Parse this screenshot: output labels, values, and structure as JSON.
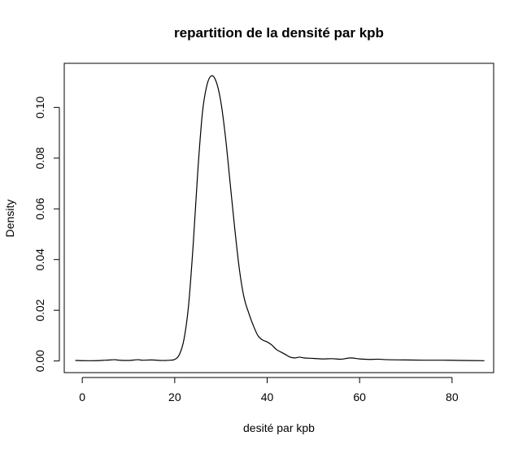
{
  "chart_data": {
    "type": "line",
    "title": "repartition de la densité par kpb",
    "xlabel": "desité par kpb",
    "ylabel": "Density",
    "xlim": [
      -3.9,
      89.0
    ],
    "ylim": [
      -0.0046,
      0.1174
    ],
    "x_ticks": [
      0,
      20,
      40,
      60,
      80
    ],
    "x_tick_labels": [
      "0",
      "20",
      "40",
      "60",
      "80"
    ],
    "y_ticks": [
      0.0,
      0.02,
      0.04,
      0.06,
      0.08,
      0.1
    ],
    "y_tick_labels": [
      "0.00",
      "0.02",
      "0.04",
      "0.06",
      "0.08",
      "0.10"
    ],
    "grid": false,
    "legend": "none",
    "line_color": "#000000",
    "series": [
      {
        "x": [
          -1.5,
          2,
          5,
          7,
          8,
          10,
          12,
          13,
          15,
          17,
          18,
          19,
          20,
          21,
          22,
          23,
          24,
          25,
          26,
          27,
          28,
          29,
          30,
          31,
          32,
          33,
          34,
          35,
          36,
          37,
          38,
          39,
          40,
          41,
          42,
          43,
          44,
          45,
          46,
          47,
          48,
          50,
          52,
          54,
          56,
          58,
          60,
          62,
          64,
          66,
          70,
          74,
          78,
          82,
          87
        ],
        "y": [
          0.0002,
          0.0001,
          0.0003,
          0.0005,
          0.0003,
          0.0002,
          0.0005,
          0.0003,
          0.0004,
          0.0002,
          0.0002,
          0.0003,
          0.0006,
          0.0025,
          0.0085,
          0.022,
          0.046,
          0.075,
          0.098,
          0.109,
          0.1125,
          0.11,
          0.102,
          0.088,
          0.07,
          0.052,
          0.036,
          0.025,
          0.019,
          0.014,
          0.01,
          0.0083,
          0.0075,
          0.0063,
          0.0045,
          0.0035,
          0.0025,
          0.0015,
          0.0012,
          0.0015,
          0.0012,
          0.001,
          0.0008,
          0.0009,
          0.0007,
          0.0012,
          0.0008,
          0.0006,
          0.0007,
          0.0005,
          0.0004,
          0.0003,
          0.0003,
          0.0002,
          0.0001
        ]
      }
    ]
  }
}
